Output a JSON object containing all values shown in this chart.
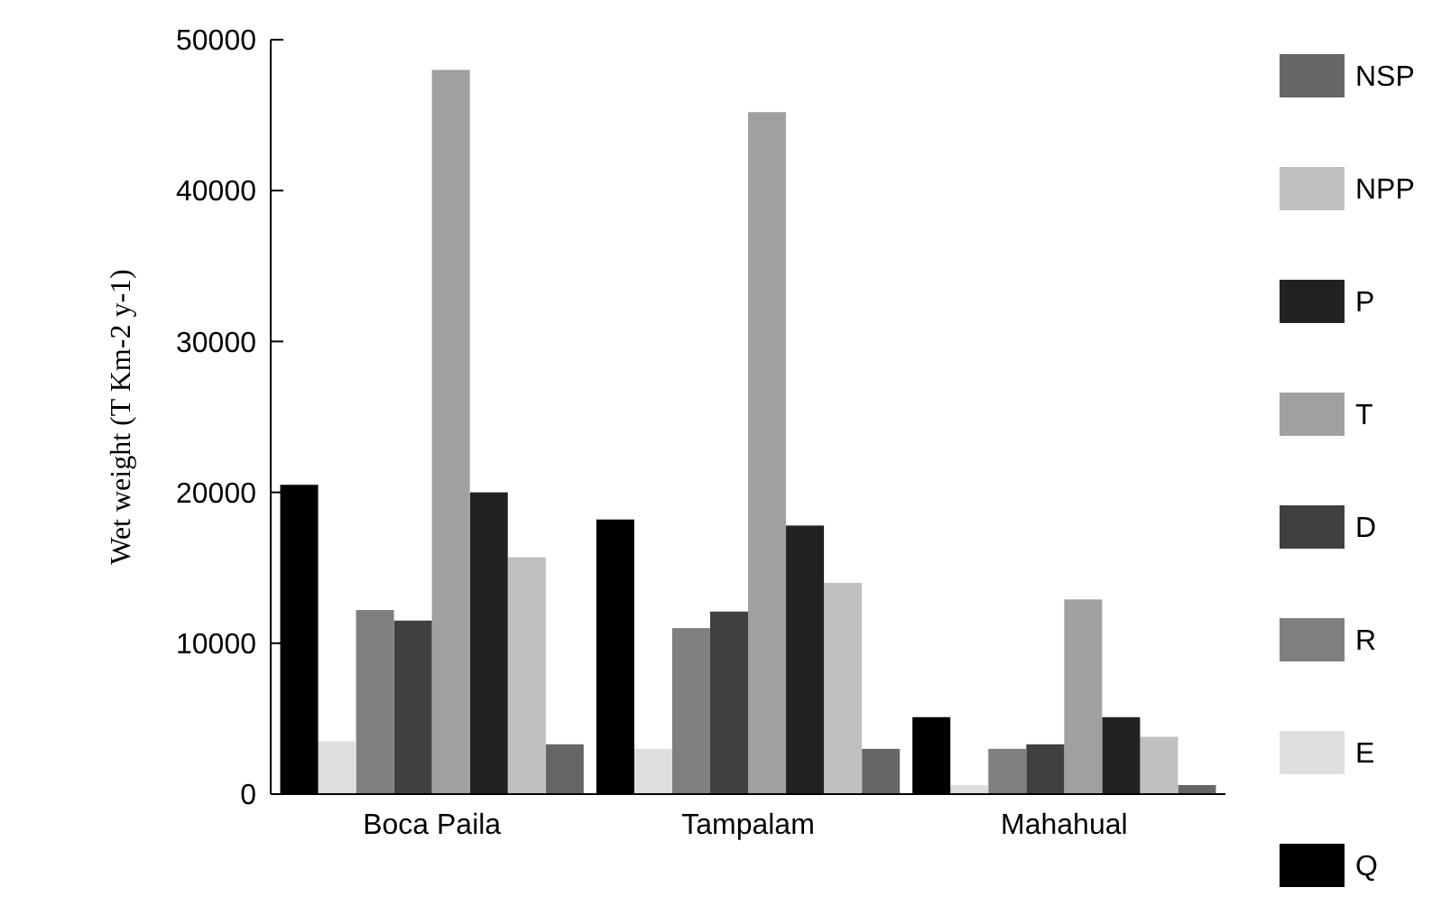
{
  "chart_data": {
    "type": "bar",
    "ylabel": "Wet weight (T Km-2 y-1)",
    "categories": [
      "Boca Paila",
      "Tampalam",
      "Mahahual"
    ],
    "series": [
      {
        "name": "NSP",
        "color": "#666666",
        "values": [
          3300,
          3000,
          600
        ]
      },
      {
        "name": "NPP",
        "color": "#c0c0c0",
        "values": [
          15700,
          14000,
          3800
        ]
      },
      {
        "name": "P",
        "color": "#222222",
        "values": [
          20000,
          17800,
          5100
        ]
      },
      {
        "name": "T",
        "color": "#a0a0a0",
        "values": [
          48000,
          45200,
          12900
        ]
      },
      {
        "name": "D",
        "color": "#404040",
        "values": [
          11500,
          12100,
          3300
        ]
      },
      {
        "name": "R",
        "color": "#7f7f7f",
        "values": [
          12200,
          11000,
          3000
        ]
      },
      {
        "name": "E",
        "color": "#dedede",
        "values": [
          3500,
          3000,
          600
        ]
      },
      {
        "name": "Q",
        "color": "#000000",
        "values": [
          20500,
          18200,
          5100
        ]
      }
    ],
    "ylim": [
      0,
      50000
    ],
    "yticks": [
      0,
      10000,
      20000,
      30000,
      40000,
      50000
    ],
    "grid": false,
    "legend": "right"
  }
}
